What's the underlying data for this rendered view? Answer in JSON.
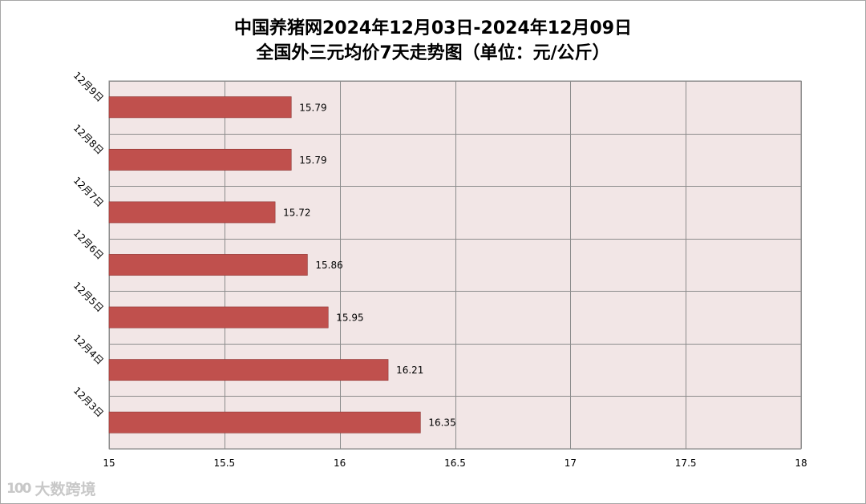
{
  "chart_data": {
    "type": "bar",
    "orientation": "horizontal",
    "title": "中国养猪网2024年12月03日-2024年12月09日",
    "subtitle": "全国外三元均价7天走势图（单位：元/公斤）",
    "categories": [
      "12月9日",
      "12月8日",
      "12月7日",
      "12月6日",
      "12月5日",
      "12月4日",
      "12月3日"
    ],
    "values": [
      15.79,
      15.79,
      15.72,
      15.86,
      15.95,
      16.21,
      16.35
    ],
    "value_labels": [
      "15.79",
      "15.79",
      "15.72",
      "15.86",
      "15.95",
      "16.21",
      "16.35"
    ],
    "xlim": [
      15,
      18
    ],
    "x_ticks": [
      15,
      15.5,
      16,
      16.5,
      17,
      17.5,
      18
    ],
    "x_tick_labels": [
      "15",
      "15.5",
      "16",
      "16.5",
      "17",
      "17.5",
      "18"
    ],
    "xlabel": "",
    "ylabel": "",
    "grid": true,
    "legend": "none",
    "bar_color": "#c0504d",
    "plot_background": "#f2e6e6",
    "grid_color": "#8c8c8c"
  },
  "watermark": {
    "logo_text": "100",
    "text": "大数跨境"
  }
}
